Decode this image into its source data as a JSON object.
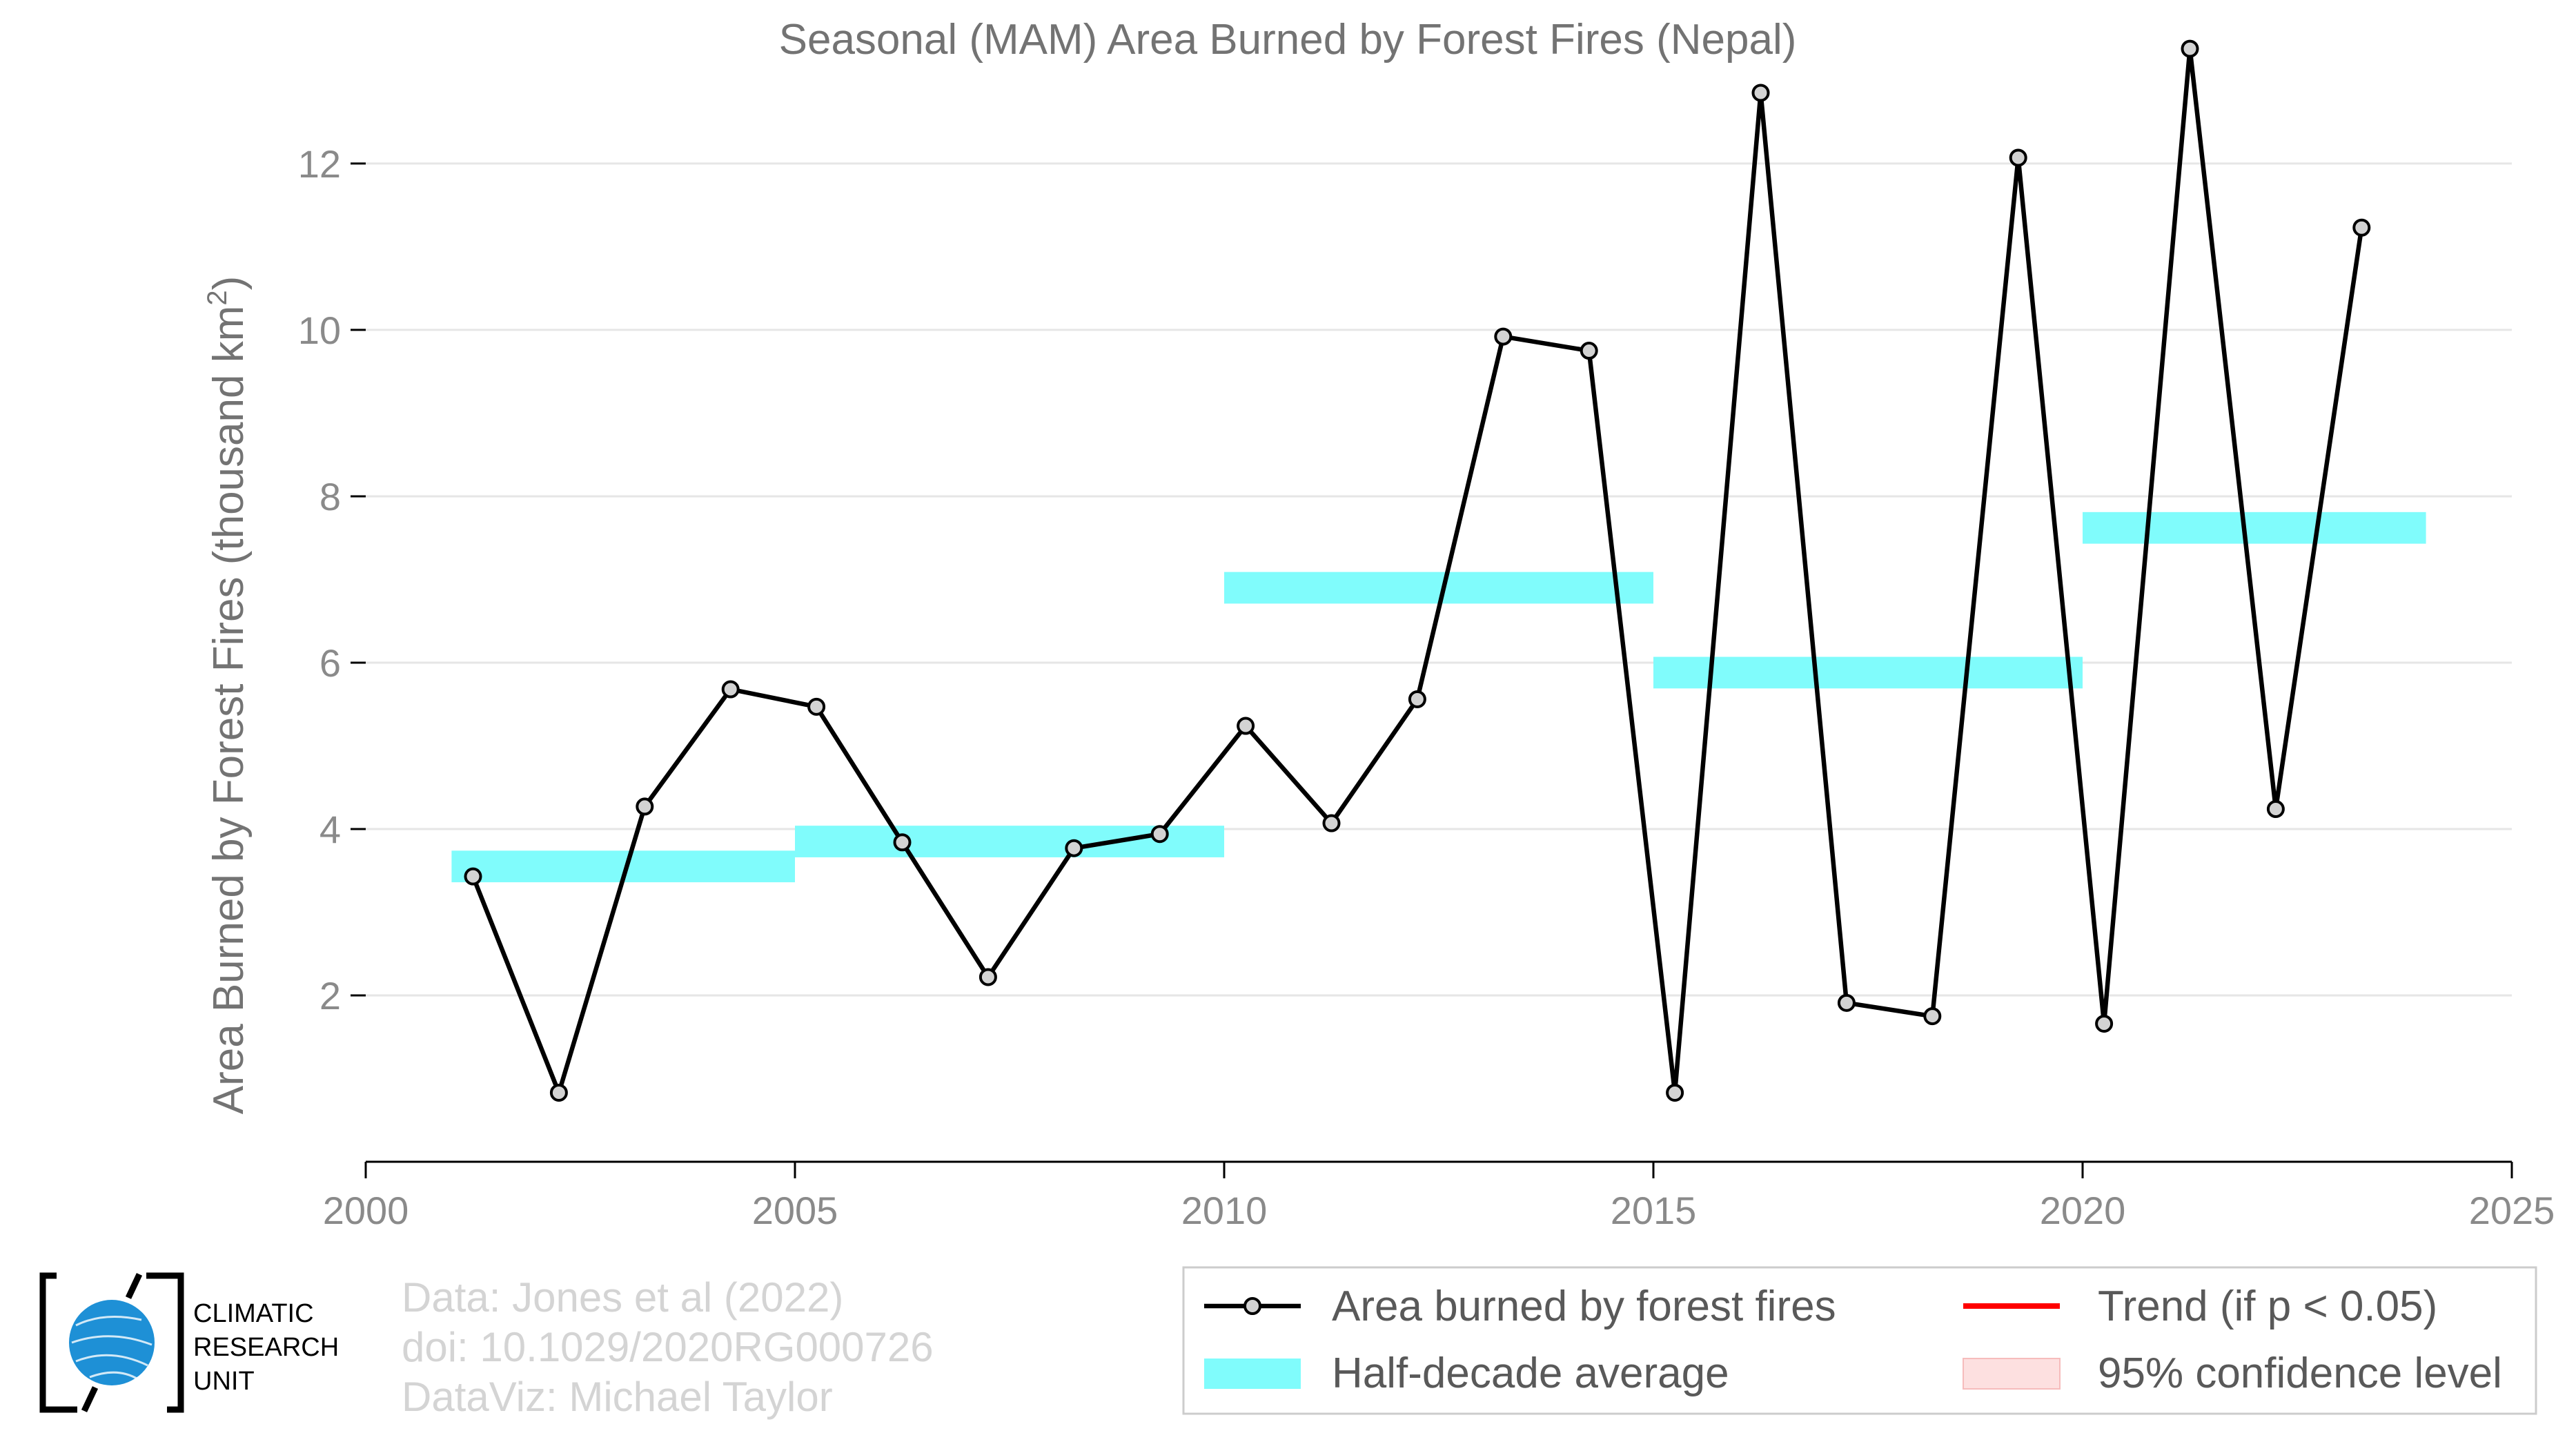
{
  "chart_data": {
    "type": "line",
    "title": "Seasonal (MAM) Area Burned by Forest Fires (Nepal)",
    "ylabel_main": "Area Burned by Forest Fires (thousand km",
    "ylabel_sup": "2",
    "ylabel_close": ")",
    "xlim": [
      2000,
      2025
    ],
    "ylim": [
      0,
      13.8
    ],
    "x_ticks": [
      2000,
      2005,
      2010,
      2015,
      2020,
      2025
    ],
    "x_tick_labels": [
      "2000",
      "2005",
      "2010",
      "2015",
      "2020",
      "2025"
    ],
    "y_ticks": [
      2,
      4,
      6,
      8,
      10,
      12
    ],
    "y_tick_labels": [
      "2",
      "4",
      "6",
      "8",
      "10",
      "12"
    ],
    "grid": "horizontal",
    "series": [
      {
        "name": "Area burned by forest fires",
        "color": "#000000",
        "marker_fill": "#d3d3d3",
        "x": [
          2001.25,
          2002.25,
          2003.25,
          2004.25,
          2005.25,
          2006.25,
          2007.25,
          2008.25,
          2009.25,
          2010.25,
          2011.25,
          2012.25,
          2013.25,
          2014.25,
          2015.25,
          2016.25,
          2017.25,
          2018.25,
          2019.25,
          2020.25,
          2021.25,
          2022.25,
          2023.25
        ],
        "values": [
          3.43,
          0.83,
          4.27,
          5.68,
          5.47,
          3.84,
          2.22,
          3.77,
          3.94,
          5.24,
          4.07,
          5.56,
          9.92,
          9.75,
          0.83,
          12.85,
          1.91,
          1.75,
          12.07,
          1.66,
          13.38,
          4.24,
          11.23
        ]
      }
    ],
    "half_decade_average": {
      "name": "Half-decade average",
      "color": "#80fcfc",
      "segments": [
        {
          "x0": 2001,
          "x1": 2005,
          "value": 3.55
        },
        {
          "x0": 2005,
          "x1": 2010,
          "value": 3.85
        },
        {
          "x0": 2010,
          "x1": 2015,
          "value": 6.9
        },
        {
          "x0": 2015,
          "x1": 2020,
          "value": 5.88
        },
        {
          "x0": 2020,
          "x1": 2024,
          "value": 7.62
        }
      ]
    },
    "legend": {
      "placement": "bottom-right",
      "items": [
        {
          "label": "Area burned by forest fires",
          "kind": "line-marker",
          "color": "#000000"
        },
        {
          "label": "Trend (if p < 0.05)",
          "kind": "line",
          "color": "#ff0000"
        },
        {
          "label": "Half-decade average",
          "kind": "band",
          "color": "#80fcfc"
        },
        {
          "label": "95% confidence level",
          "kind": "band",
          "color": "#fde0e0"
        }
      ]
    }
  },
  "credits": {
    "line1": "Data: Jones et al (2022)",
    "line2": "doi: 10.1029/2020RG000726",
    "line3": "DataViz: Michael Taylor"
  },
  "logo": {
    "line1": "CLIMATIC",
    "line2": "RESEARCH",
    "line3": "UNIT",
    "globe_color": "#1e90d6"
  }
}
